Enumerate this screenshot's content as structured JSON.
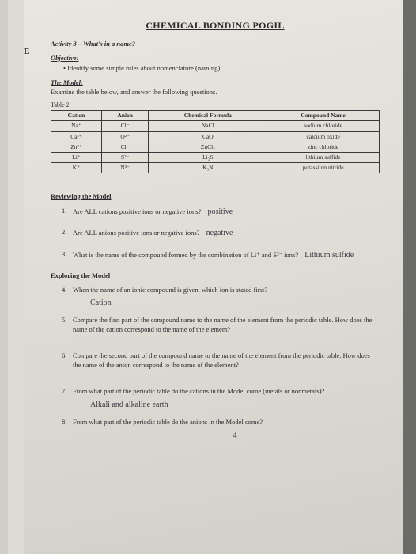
{
  "edge_letter": "E",
  "title": "CHEMICAL BONDING POGIL",
  "activity": "Activity 3 – What's in a name?",
  "objective_label": "Objective:",
  "objective_bullet": "Identify some simple rules about nomenclature (naming).",
  "model_label": "The Model:",
  "model_text": "Examine the table below, and answer the following questions.",
  "table_label": "Table 2",
  "table": {
    "headers": [
      "Cation",
      "Anion",
      "Chemical Formula",
      "Compound Name"
    ],
    "rows": [
      [
        "Na⁺",
        "Cl⁻",
        "NaCl",
        "sodium chloride"
      ],
      [
        "Ca²⁺",
        "O²⁻",
        "CaO",
        "calcium oxide"
      ],
      [
        "Zn²⁺",
        "Cl⁻",
        "ZnCl₂",
        "zinc chloride"
      ],
      [
        "Li⁺",
        "S²⁻",
        "Li₂S",
        "lithium sulfide"
      ],
      [
        "K⁺",
        "N³⁻",
        "K₃N",
        "potassium nitride"
      ]
    ]
  },
  "reviewing_label": "Reviewing the Model",
  "questions_review": [
    {
      "n": "1.",
      "t": "Are ALL cations positive ions or negative ions?",
      "hw": "positive"
    },
    {
      "n": "2.",
      "t": "Are ALL anions positive ions or negative ions?",
      "hw": "negative"
    },
    {
      "n": "3.",
      "t": "What is the name of the compound formed by the combination of Li⁺ and S²⁻ ions?",
      "hw": "Lithium sulfide"
    }
  ],
  "exploring_label": "Exploring the Model",
  "questions_explore": [
    {
      "n": "4.",
      "t": "When the name of an ionic compound is given, which ion is stated first?",
      "hw": "Cation",
      "hw_below": true
    },
    {
      "n": "5.",
      "t": "Compare the first part of the compound name to the name of the element from the periodic table. How does the name of the cation correspond to the name of the element?"
    },
    {
      "n": "6.",
      "t": "Compare the second part of the compound name to the name of the element from the periodic table. How does the name of the anion correspond to the name of the element?"
    },
    {
      "n": "7.",
      "t": "From what part of the periodic table do the cations in the Model come (metals or nonmetals)?",
      "hw": "Alkali and alkaline earth",
      "hw_below": true
    },
    {
      "n": "8.",
      "t": "From what part of the periodic table do the anions in the Model come?",
      "hw": "4",
      "hw_below": true,
      "hw_center": true
    }
  ],
  "colors": {
    "bg": "#6b6b68",
    "paper": "#e0ddd6",
    "text": "#2a2a2d",
    "handwrite": "#3a3a42"
  }
}
